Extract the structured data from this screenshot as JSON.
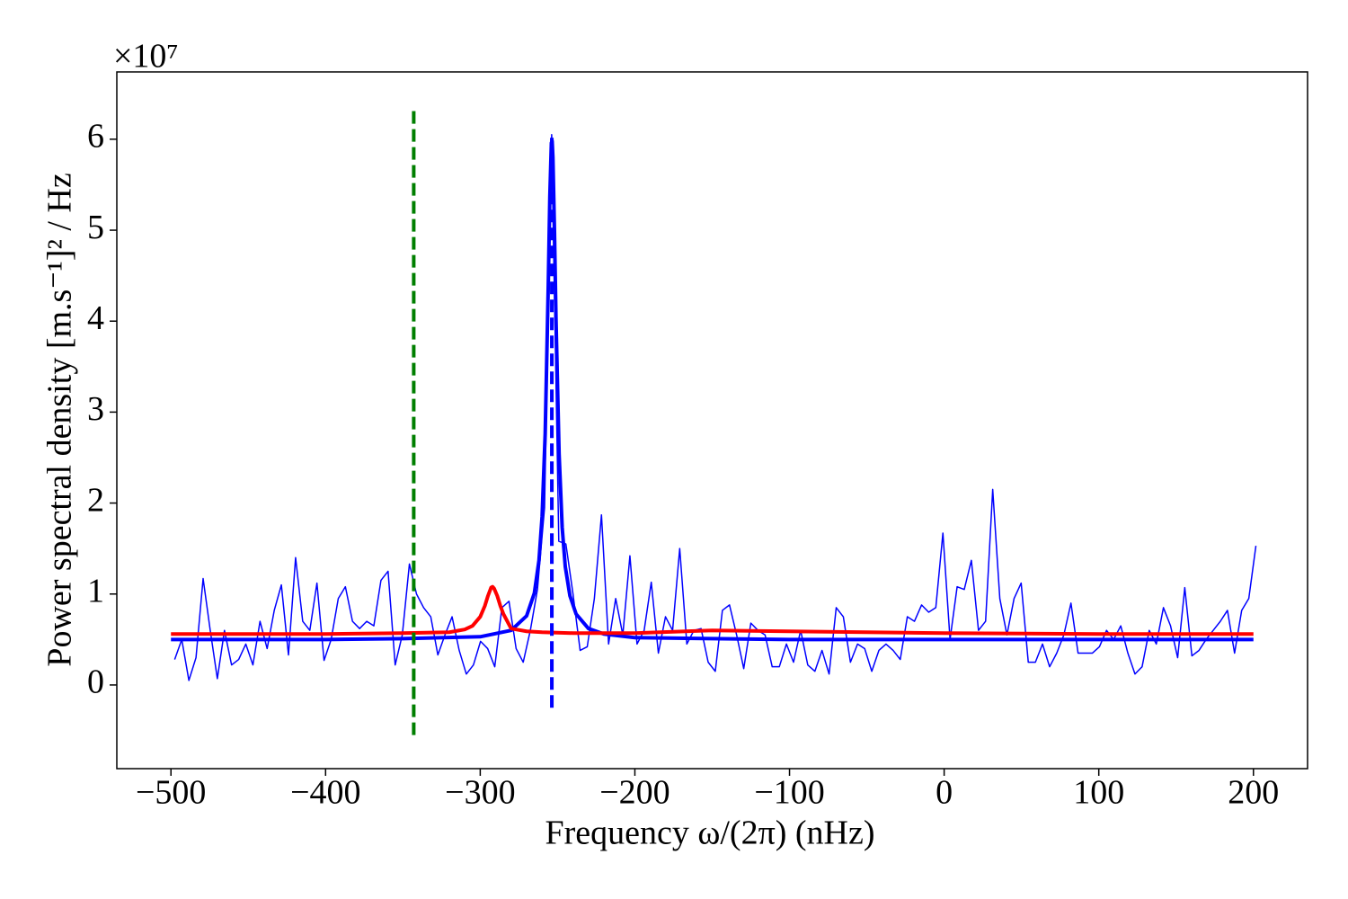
{
  "chart_data": {
    "type": "line",
    "ylabel": "Power spectral density [m.s⁻¹]² / Hz",
    "xlabel": "Frequency ω/(2π) (nHz)",
    "offset_label": "×10⁷",
    "xlim": [
      -535,
      235
    ],
    "ylim": [
      -0.92,
      6.74
    ],
    "xticks": [
      {
        "value": -500,
        "label": "−500"
      },
      {
        "value": -400,
        "label": "−400"
      },
      {
        "value": -300,
        "label": "−300"
      },
      {
        "value": -200,
        "label": "−200"
      },
      {
        "value": -100,
        "label": "−100"
      },
      0,
      100,
      200
    ],
    "yticks": [
      0,
      1,
      2,
      3,
      4,
      5,
      6
    ],
    "series": [
      {
        "color": "#0000ff",
        "x": [
          -497.6,
          -493,
          -488.4,
          -483.8,
          -479.2,
          -474.6,
          -470,
          -465.4,
          -460.8,
          -456.2,
          -451.6,
          -447,
          -442.4,
          -437.8,
          -433.2,
          -428.6,
          -424,
          -419.4,
          -414.8,
          -410.2,
          -405.6,
          -401,
          -396.4,
          -391.8,
          -387.2,
          -382.6,
          -378,
          -373.4,
          -368.8,
          -364.2,
          -359.6,
          -355,
          -350.4,
          -345.8,
          -341.2,
          -336.6,
          -332,
          -327.4,
          -322.8,
          -318.2,
          -313.6,
          -309,
          -304.4,
          -299.8,
          -295.2,
          -290.6,
          -286,
          -281.4,
          -276.8,
          -272.2,
          -267.6,
          -263,
          -258.4,
          -253.8,
          -249.2,
          -244.6,
          -240,
          -235.4,
          -230.8,
          -226.2,
          -221.6,
          -217,
          -212.4,
          -207.8,
          -203.2,
          -198.6,
          -194,
          -189.4,
          -184.8,
          -180.2,
          -175.6,
          -171,
          -166.4,
          -161.8,
          -157.2,
          -152.6,
          -148,
          -143.4,
          -138.8,
          -134.2,
          -129.6,
          -125,
          -120.4,
          -115.8,
          -111.2,
          -106.6,
          -102,
          -97.4,
          -92.8,
          -88.2,
          -83.6,
          -79,
          -74.4,
          -69.8,
          -65.2,
          -60.6,
          -56,
          -51.4,
          -46.8,
          -42.2,
          -37.6,
          -33,
          -28.4,
          -23.8,
          -19.2,
          -14.6,
          -10,
          -5.4,
          -0.8,
          3.8,
          8.4,
          13,
          17.6,
          22.2,
          26.8,
          31.4,
          36,
          40.6,
          45.2,
          49.8,
          54.4,
          59,
          63.6,
          68.2,
          72.8,
          77.4,
          82,
          86.6,
          91.2,
          95.8,
          100.4,
          105,
          109.6,
          114.2,
          118.8,
          123.4,
          128,
          132.6,
          137.2,
          141.8,
          146.4,
          151,
          155.6,
          160.2,
          164.8,
          169.4,
          174,
          178.6,
          183.2,
          187.8,
          192.4,
          197,
          201.6
        ],
        "values": [
          0.28,
          0.5,
          0.05,
          0.3,
          1.17,
          0.6,
          0.07,
          0.6,
          0.22,
          0.28,
          0.45,
          0.22,
          0.7,
          0.4,
          0.82,
          1.1,
          0.33,
          1.4,
          0.7,
          0.6,
          1.12,
          0.27,
          0.5,
          0.95,
          1.08,
          0.7,
          0.62,
          0.7,
          0.65,
          1.15,
          1.25,
          0.22,
          0.55,
          1.33,
          1.0,
          0.85,
          0.75,
          0.33,
          0.55,
          0.75,
          0.38,
          0.12,
          0.22,
          0.48,
          0.4,
          0.2,
          0.85,
          0.92,
          0.4,
          0.25,
          0.6,
          1.05,
          1.95,
          6.05,
          1.58,
          1.55,
          1.0,
          0.38,
          0.42,
          0.95,
          1.87,
          0.45,
          0.95,
          0.55,
          1.42,
          0.45,
          0.6,
          1.13,
          0.35,
          0.75,
          0.6,
          1.5,
          0.45,
          0.6,
          0.62,
          0.25,
          0.15,
          0.82,
          0.88,
          0.55,
          0.18,
          0.68,
          0.6,
          0.55,
          0.2,
          0.2,
          0.45,
          0.25,
          0.6,
          0.22,
          0.15,
          0.38,
          0.12,
          0.85,
          0.75,
          0.25,
          0.45,
          0.4,
          0.15,
          0.38,
          0.45,
          0.38,
          0.28,
          0.75,
          0.7,
          0.88,
          0.8,
          0.85,
          1.67,
          0.5,
          1.08,
          1.05,
          1.37,
          0.6,
          0.7,
          2.15,
          0.95,
          0.55,
          0.95,
          1.12,
          0.25,
          0.25,
          0.45,
          0.2,
          0.35,
          0.55,
          0.9,
          0.35,
          0.35,
          0.35,
          0.42,
          0.6,
          0.5,
          0.65,
          0.35,
          0.12,
          0.2,
          0.6,
          0.45,
          0.85,
          0.65,
          0.3,
          1.07,
          0.32,
          0.38,
          0.5,
          0.6,
          0.7,
          0.82,
          0.35,
          0.82,
          0.95,
          1.53
        ]
      },
      {
        "color": "#0000ff",
        "x": [
          -500,
          -400,
          -350,
          -300,
          -280,
          -270,
          -265,
          -262,
          -260,
          -258,
          -256,
          -255,
          -254,
          -253.5,
          -253,
          -252,
          -251,
          -249,
          -247,
          -245,
          -242,
          -238,
          -230,
          -220,
          -200,
          -150,
          -100,
          0,
          100,
          200
        ],
        "values": [
          0.5,
          0.5,
          0.51,
          0.53,
          0.6,
          0.76,
          1.01,
          1.37,
          1.85,
          2.76,
          4.4,
          5.37,
          5.96,
          5.98,
          5.8,
          5.0,
          4.02,
          2.54,
          1.73,
          1.3,
          0.98,
          0.78,
          0.62,
          0.56,
          0.52,
          0.51,
          0.5,
          0.5,
          0.5,
          0.5
        ]
      },
      {
        "color": "#ff0000",
        "x": [
          -500,
          -400,
          -350,
          -320,
          -310,
          -305,
          -300,
          -297,
          -295,
          -293,
          -292,
          -291,
          -289,
          -287,
          -285,
          -280,
          -270,
          -260,
          -240,
          -200,
          -150,
          -100,
          0,
          100,
          200
        ],
        "values": [
          0.56,
          0.56,
          0.57,
          0.58,
          0.61,
          0.65,
          0.75,
          0.87,
          0.98,
          1.07,
          1.08,
          1.06,
          0.98,
          0.87,
          0.78,
          0.62,
          0.59,
          0.58,
          0.57,
          0.57,
          0.6,
          0.59,
          0.57,
          0.56,
          0.56
        ]
      }
    ],
    "vlines": [
      {
        "x": -343,
        "ymin": -0.55,
        "ymax": 6.36,
        "color": "#007f00"
      },
      {
        "x": -253.7,
        "ymin": -0.25,
        "ymax": 6.05,
        "color": "#0000ff"
      }
    ]
  }
}
